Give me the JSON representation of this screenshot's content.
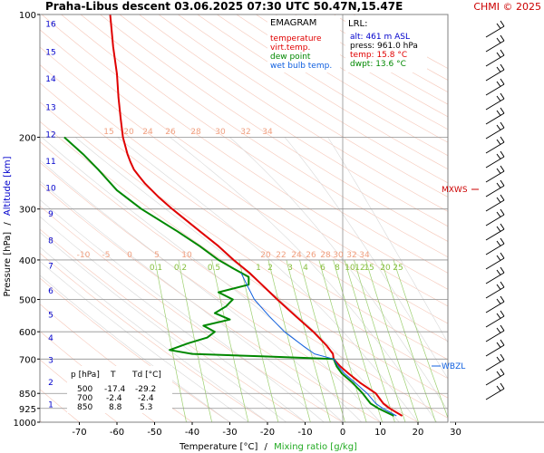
{
  "title": "Praha-Libus  descent  03.06.2025 07:30 UTC  50.47N,15.47E",
  "copyright": "CHMI © 2025",
  "chart_data": {
    "type": "line",
    "title": "Praha-Libus  descent  03.06.2025 07:30 UTC  50.47N,15.47E",
    "xlabel": "Temperature [°C]",
    "xlabel_sep": "/",
    "xlabel2": "Mixing ratio [g/kg]",
    "ylabel": "Pressure [hPa]",
    "ylabel_sep": "/",
    "ylabel2": "Altitude [km]",
    "x_scale": "skew",
    "y_scale": "log",
    "xlim": [
      -80,
      35
    ],
    "ylim": [
      1000,
      100
    ],
    "x_ticks": [
      -70,
      -60,
      -50,
      -40,
      -30,
      -20,
      -10,
      0,
      10,
      20,
      30
    ],
    "pressure_ticks": [
      100,
      200,
      300,
      400,
      500,
      600,
      700,
      850,
      925,
      1000
    ],
    "altitude_ticks": [
      {
        "km": "1",
        "p": 900
      },
      {
        "km": "2",
        "p": 795
      },
      {
        "km": "3",
        "p": 700
      },
      {
        "km": "4",
        "p": 618
      },
      {
        "km": "5",
        "p": 543
      },
      {
        "km": "6",
        "p": 474
      },
      {
        "km": "7",
        "p": 412
      },
      {
        "km": "8",
        "p": 357
      },
      {
        "km": "9",
        "p": 307
      },
      {
        "km": "10",
        "p": 265
      },
      {
        "km": "11",
        "p": 228
      },
      {
        "km": "12",
        "p": 196
      },
      {
        "km": "13",
        "p": 168
      },
      {
        "km": "14",
        "p": 143
      },
      {
        "km": "15",
        "p": 123
      },
      {
        "km": "16",
        "p": 105
      }
    ],
    "mixing_ratio_labels": [
      "0.1",
      "0.2",
      "0.5",
      "1",
      "2",
      "3",
      "4",
      "6",
      "8",
      "10",
      "12",
      "15",
      "20",
      "25"
    ],
    "dry_adiabat_labels_200": [
      "15",
      "20",
      "24",
      "26",
      "28",
      "30",
      "32",
      "34"
    ],
    "dry_adiabat_labels_400": [
      "-10",
      "-5",
      "0",
      "5",
      "10",
      "20",
      "22",
      "24",
      "26",
      "28",
      "30",
      "32",
      "34"
    ],
    "legend": {
      "title": "EMAGRAM",
      "items": [
        {
          "label": "temperature",
          "color": "#e00000"
        },
        {
          "label": "virt.temp.",
          "color": "#e00000"
        },
        {
          "label": "dew point",
          "color": "#008800"
        },
        {
          "label": "wet bulb temp.",
          "color": "#1060e0"
        }
      ]
    },
    "lrl": {
      "title": "LRL:",
      "lines": [
        {
          "text": "alt: 461 m ASL",
          "color": "#0000cc"
        },
        {
          "text": "press: 961.0 hPa",
          "color": "#000000"
        },
        {
          "text": "temp: 15.8 °C",
          "color": "#e00000"
        },
        {
          "text": "dwpt: 13.6 °C",
          "color": "#008800"
        }
      ]
    },
    "table": {
      "headers": [
        "p [hPa]",
        "T",
        "Td [°C]"
      ],
      "rows": [
        [
          "500",
          "-17.4",
          "-29.2"
        ],
        [
          "700",
          "-2.4",
          "-2.4"
        ],
        [
          "850",
          "8.8",
          "5.3"
        ]
      ]
    },
    "annotations": [
      {
        "text": "MXWS",
        "p": 270,
        "color": "#cc0000"
      },
      {
        "text": "WBZL",
        "p": 730,
        "color": "#1060e0"
      }
    ],
    "series": [
      {
        "name": "temperature",
        "color": "#e00000",
        "points": [
          [
            965,
            15.8
          ],
          [
            925,
            12.5
          ],
          [
            900,
            10.8
          ],
          [
            850,
            8.8
          ],
          [
            800,
            4.6
          ],
          [
            760,
            1.6
          ],
          [
            730,
            -0.6
          ],
          [
            700,
            -2.4
          ],
          [
            680,
            -2.6
          ],
          [
            650,
            -4.2
          ],
          [
            600,
            -7.8
          ],
          [
            550,
            -12.4
          ],
          [
            500,
            -17.4
          ],
          [
            460,
            -21.5
          ],
          [
            430,
            -24.8
          ],
          [
            400,
            -29.0
          ],
          [
            370,
            -33.0
          ],
          [
            340,
            -38.0
          ],
          [
            300,
            -45.3
          ],
          [
            280,
            -49.0
          ],
          [
            260,
            -52.5
          ],
          [
            250,
            -54.0
          ],
          [
            240,
            -55.5
          ],
          [
            230,
            -56.4
          ],
          [
            220,
            -57.2
          ],
          [
            200,
            -58.4
          ],
          [
            180,
            -59.0
          ],
          [
            160,
            -59.6
          ],
          [
            140,
            -60.0
          ],
          [
            120,
            -61.0
          ],
          [
            105,
            -61.6
          ],
          [
            100,
            -61.8
          ]
        ]
      },
      {
        "name": "dew point",
        "color": "#008800",
        "points": [
          [
            965,
            13.6
          ],
          [
            925,
            9.5
          ],
          [
            900,
            7.4
          ],
          [
            850,
            5.3
          ],
          [
            800,
            2.6
          ],
          [
            760,
            -0.2
          ],
          [
            730,
            -1.6
          ],
          [
            700,
            -2.4
          ],
          [
            690,
            -20.0
          ],
          [
            680,
            -40.0
          ],
          [
            665,
            -46.0
          ],
          [
            640,
            -41.0
          ],
          [
            620,
            -36.0
          ],
          [
            600,
            -34.0
          ],
          [
            580,
            -37.0
          ],
          [
            560,
            -30.0
          ],
          [
            540,
            -34.0
          ],
          [
            520,
            -31.0
          ],
          [
            500,
            -29.2
          ],
          [
            480,
            -33.0
          ],
          [
            460,
            -25.0
          ],
          [
            440,
            -25.0
          ],
          [
            420,
            -29.0
          ],
          [
            400,
            -33.0
          ],
          [
            370,
            -38.0
          ],
          [
            340,
            -44.0
          ],
          [
            300,
            -53.5
          ],
          [
            270,
            -60.0
          ],
          [
            240,
            -65.0
          ],
          [
            220,
            -69.0
          ],
          [
            200,
            -74.0
          ]
        ]
      },
      {
        "name": "wet bulb temp.",
        "color": "#1060e0",
        "points": [
          [
            965,
            14.3
          ],
          [
            925,
            10.7
          ],
          [
            900,
            8.8
          ],
          [
            850,
            6.5
          ],
          [
            800,
            3.3
          ],
          [
            760,
            0.5
          ],
          [
            730,
            -1.1
          ],
          [
            700,
            -2.4
          ],
          [
            680,
            -7.5
          ],
          [
            650,
            -10.5
          ],
          [
            600,
            -15.5
          ],
          [
            550,
            -19.5
          ],
          [
            500,
            -23.5
          ],
          [
            460,
            -25.5
          ],
          [
            430,
            -27.0
          ]
        ]
      }
    ],
    "grid": true
  }
}
